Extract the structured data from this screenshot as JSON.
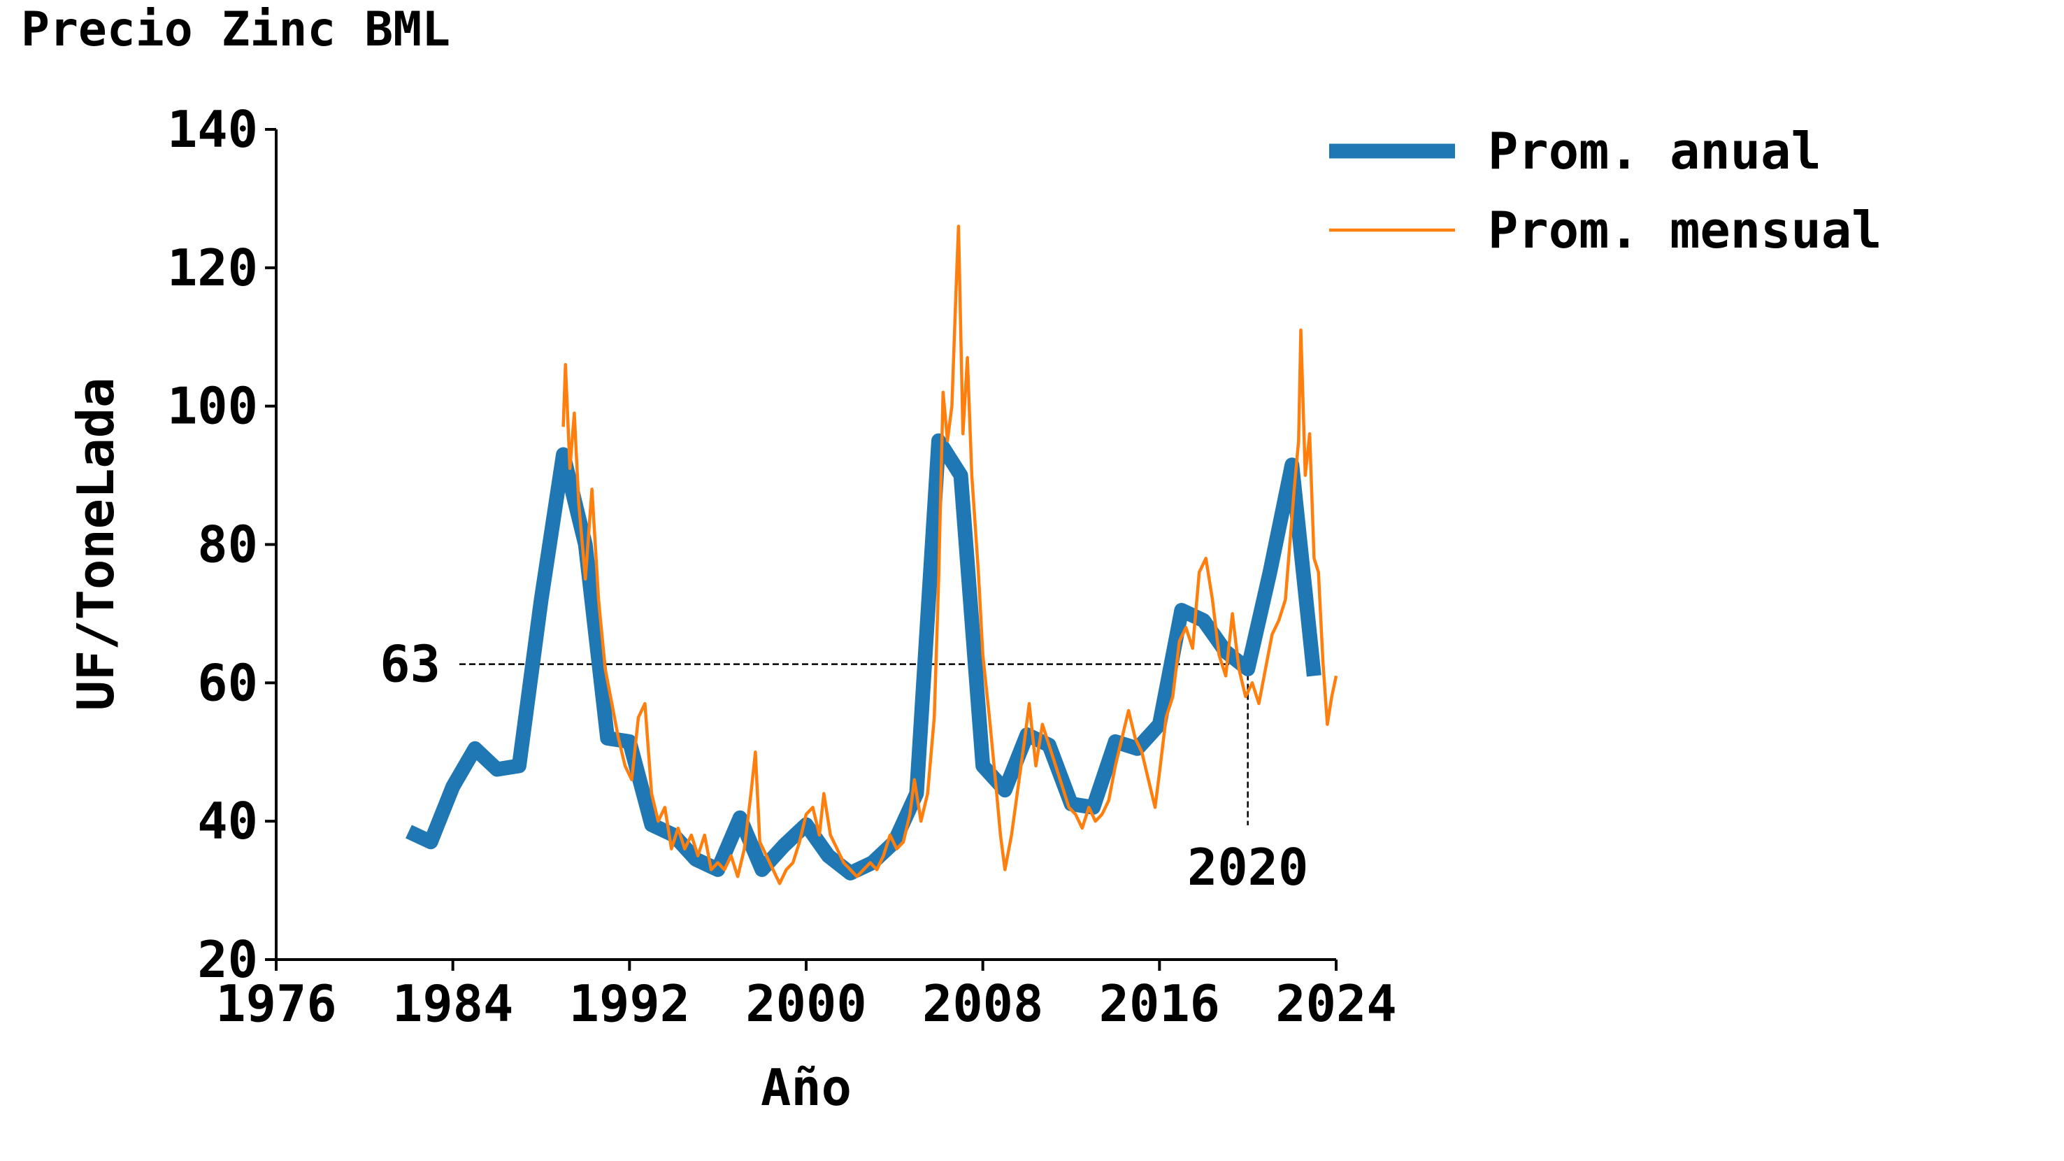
{
  "chart_data": {
    "type": "line",
    "title": "Precio Zinc BML",
    "xlabel": "Año",
    "ylabel": "UF/ToneLada",
    "xlim": [
      1976,
      2024
    ],
    "xticks": [
      1976,
      1984,
      1992,
      2000,
      2008,
      2016,
      2024
    ],
    "ylim": [
      20,
      140
    ],
    "yticks": [
      20,
      40,
      60,
      80,
      100,
      120,
      140
    ],
    "legend": "upper right outside",
    "series": [
      {
        "name": "Prom. anual",
        "color": "#1f77b4",
        "x": [
          1982,
          1983,
          1984,
          1985,
          1986,
          1987,
          1988,
          1989,
          1990,
          1991,
          1992,
          1993,
          1994,
          1995,
          1996,
          1997,
          1998,
          1999,
          2000,
          2001,
          2002,
          2003,
          2004,
          2005,
          2006,
          2007,
          2008,
          2009,
          2010,
          2011,
          2012,
          2013,
          2014,
          2015,
          2016,
          2017,
          2018,
          2019,
          2020,
          2021,
          2022,
          2023
        ],
        "values": [
          38.5,
          37,
          45,
          50.5,
          47.5,
          48,
          72,
          93,
          80,
          52,
          51.5,
          39.5,
          38,
          34.5,
          33,
          40.5,
          33,
          36.5,
          39.5,
          35,
          32.5,
          34,
          37,
          44,
          95,
          90,
          48,
          44.5,
          52.5,
          51,
          42.5,
          42,
          51.5,
          50.5,
          54,
          70.5,
          69,
          64.5,
          62,
          76,
          91.5,
          61
        ]
      },
      {
        "name": "Prom. mensual",
        "color": "#ff7f0e",
        "x": [
          1989.0,
          1989.1,
          1989.3,
          1989.5,
          1989.7,
          1990.0,
          1990.3,
          1990.6,
          1990.9,
          1991.2,
          1991.5,
          1991.8,
          1992.1,
          1992.4,
          1992.7,
          1993.0,
          1993.3,
          1993.6,
          1993.9,
          1994.2,
          1994.5,
          1994.8,
          1995.1,
          1995.4,
          1995.7,
          1996.0,
          1996.3,
          1996.6,
          1996.9,
          1997.2,
          1997.5,
          1997.7,
          1997.9,
          1998.2,
          1998.5,
          1998.8,
          1999.1,
          1999.4,
          1999.7,
          2000.0,
          2000.3,
          2000.6,
          2000.8,
          2001.1,
          2001.4,
          2001.7,
          2002.0,
          2002.3,
          2002.6,
          2002.9,
          2003.2,
          2003.5,
          2003.8,
          2004.1,
          2004.4,
          2004.7,
          2004.9,
          2005.2,
          2005.5,
          2005.8,
          2006.0,
          2006.2,
          2006.4,
          2006.6,
          2006.8,
          2006.9,
          2007.1,
          2007.3,
          2007.5,
          2007.8,
          2008.0,
          2008.3,
          2008.6,
          2008.8,
          2009.0,
          2009.3,
          2009.6,
          2009.9,
          2010.1,
          2010.4,
          2010.7,
          2011.0,
          2011.3,
          2011.6,
          2011.9,
          2012.2,
          2012.5,
          2012.8,
          2013.1,
          2013.4,
          2013.7,
          2014.0,
          2014.3,
          2014.6,
          2014.9,
          2015.2,
          2015.5,
          2015.8,
          2016.0,
          2016.3,
          2016.6,
          2016.9,
          2017.2,
          2017.5,
          2017.8,
          2018.1,
          2018.4,
          2018.7,
          2019.0,
          2019.3,
          2019.6,
          2019.9,
          2020.2,
          2020.5,
          2020.8,
          2021.1,
          2021.4,
          2021.7,
          2021.9,
          2022.1,
          2022.3,
          2022.4,
          2022.6,
          2022.8,
          2023.0,
          2023.2,
          2023.4,
          2023.6,
          2023.8,
          2024.0
        ],
        "values": [
          97,
          106,
          91,
          99,
          86,
          75,
          88,
          72,
          62,
          57,
          52,
          48,
          46,
          55,
          57,
          44,
          40,
          42,
          36,
          39,
          36,
          38,
          35,
          38,
          33,
          34,
          33,
          35,
          32,
          36,
          44,
          50,
          37,
          35,
          33,
          31,
          33,
          34,
          37,
          41,
          42,
          38,
          44,
          38,
          36,
          34,
          33,
          32,
          33,
          34,
          33,
          35,
          38,
          36,
          37,
          41,
          46,
          40,
          44,
          55,
          75,
          102,
          95,
          100,
          118,
          126,
          96,
          107,
          90,
          76,
          64,
          55,
          45,
          38,
          33,
          38,
          45,
          52,
          57,
          48,
          54,
          51,
          48,
          45,
          42,
          41,
          39,
          42,
          40,
          41,
          43,
          48,
          52,
          56,
          52,
          50,
          46,
          42,
          47,
          55,
          58,
          66,
          68,
          65,
          76,
          78,
          72,
          64,
          61,
          70,
          62,
          58,
          60,
          57,
          62,
          67,
          69,
          72,
          80,
          88,
          95,
          111,
          90,
          96,
          78,
          76,
          63,
          54,
          58,
          61
        ]
      }
    ],
    "annotations": [
      {
        "axis": "y",
        "value": 62.7,
        "label": "63"
      },
      {
        "axis": "x",
        "value": 2020,
        "label": "2020"
      }
    ]
  }
}
